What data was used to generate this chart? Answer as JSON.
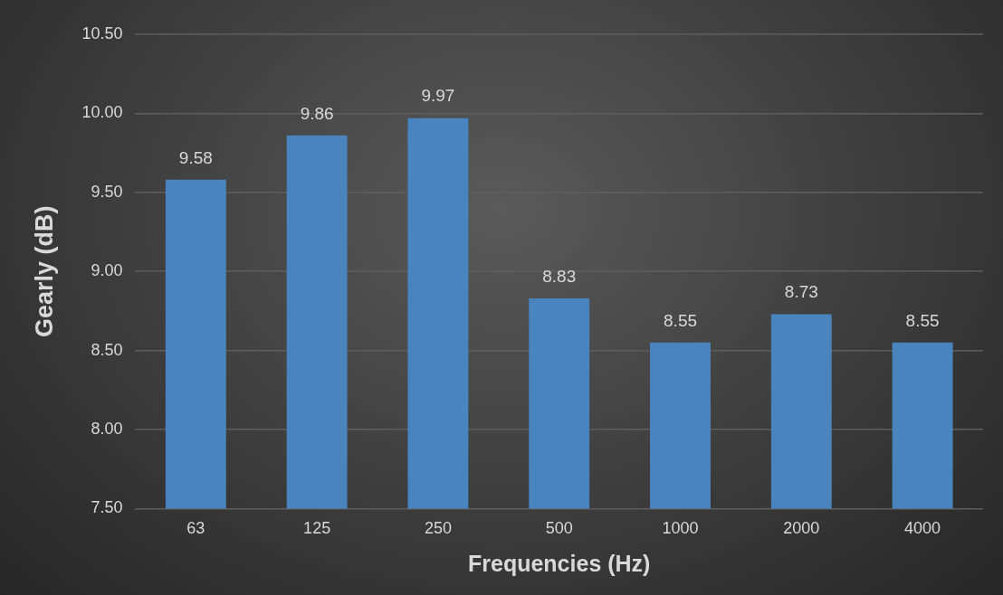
{
  "chart_data": {
    "type": "bar",
    "xlabel": "Frequencies (Hz)",
    "ylabel": "Gearly (dB)",
    "categories": [
      "63",
      "125",
      "250",
      "500",
      "1000",
      "2000",
      "4000"
    ],
    "values": [
      9.58,
      9.86,
      9.97,
      8.83,
      8.55,
      8.73,
      8.55
    ],
    "color": "#4a84bf",
    "ylim": [
      7.5,
      10.5
    ],
    "yticks": [
      {
        "value": 7.5,
        "label": "7.50"
      },
      {
        "value": 8,
        "label": "8.00"
      },
      {
        "value": 8.5,
        "label": "8.50"
      },
      {
        "value": 9,
        "label": "9.00"
      },
      {
        "value": 9.5,
        "label": "9.50"
      },
      {
        "value": 10,
        "label": "10.00"
      },
      {
        "value": 10.5,
        "label": "10.50"
      }
    ],
    "grid": "y",
    "legend": false,
    "data_labels": true
  }
}
